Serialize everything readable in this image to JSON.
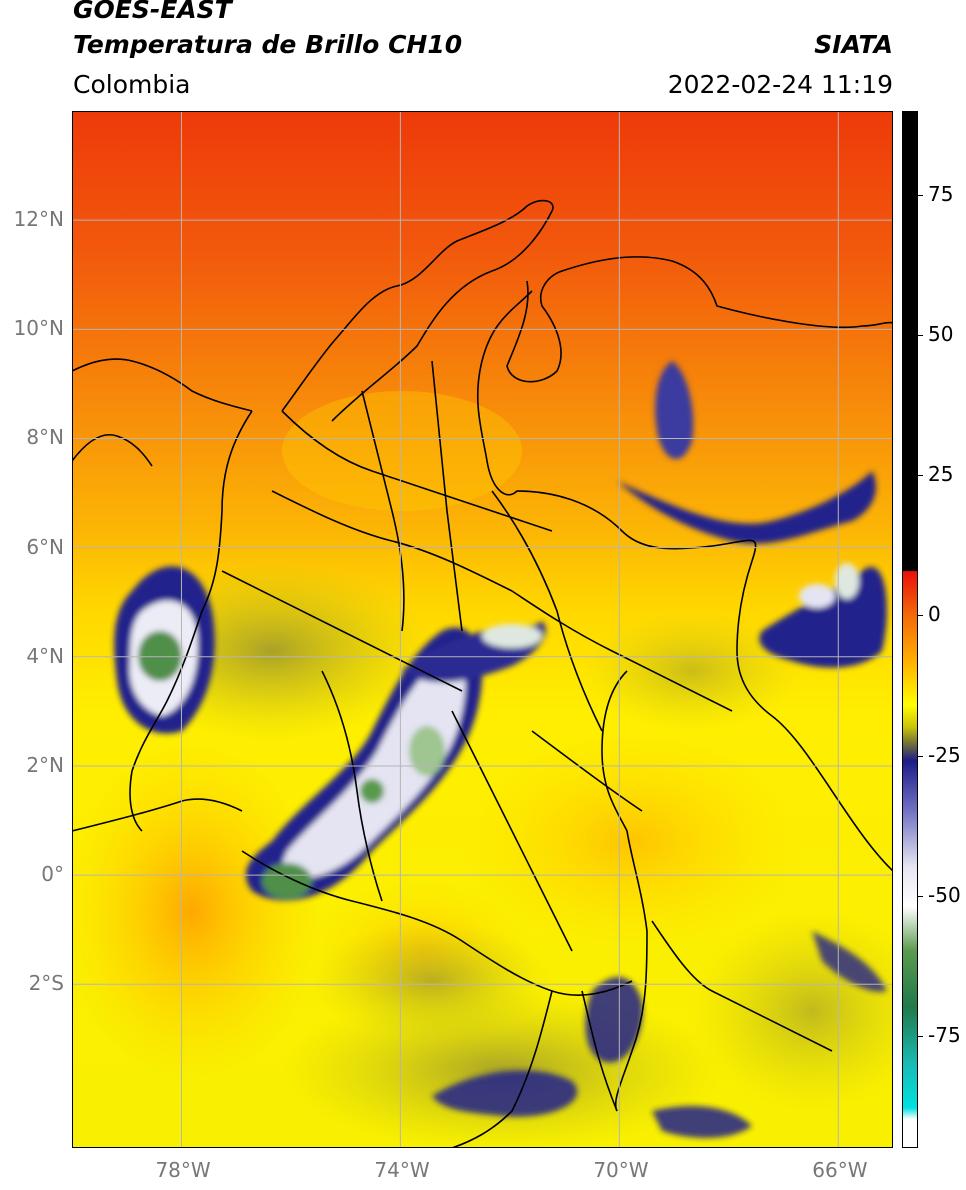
{
  "header": {
    "satellite": "GOES-EAST",
    "product": "Temperatura de Brillo CH10",
    "organization": "SIATA",
    "region": "Colombia",
    "timestamp": "2022-02-24 11:19"
  },
  "map": {
    "lon_range": [
      -80,
      -65
    ],
    "lat_range": [
      -5,
      14
    ],
    "lon_ticks": [
      {
        "value": -78,
        "label": "78°W"
      },
      {
        "value": -74,
        "label": "74°W"
      },
      {
        "value": -70,
        "label": "70°W"
      },
      {
        "value": -66,
        "label": "66°W"
      }
    ],
    "lat_ticks": [
      {
        "value": 12,
        "label": "12°N"
      },
      {
        "value": 10,
        "label": "10°N"
      },
      {
        "value": 8,
        "label": "8°N"
      },
      {
        "value": 6,
        "label": "6°N"
      },
      {
        "value": 4,
        "label": "4°N"
      },
      {
        "value": 2,
        "label": "2°N"
      },
      {
        "value": 0,
        "label": "0°"
      },
      {
        "value": -2,
        "label": "2°S"
      }
    ]
  },
  "colorbar": {
    "range": [
      -95,
      90
    ],
    "ticks": [
      {
        "value": 75,
        "label": "75"
      },
      {
        "value": 50,
        "label": "50"
      },
      {
        "value": 25,
        "label": "25"
      },
      {
        "value": 0,
        "label": "0"
      },
      {
        "value": -25,
        "label": "-25"
      },
      {
        "value": -50,
        "label": "-50"
      },
      {
        "value": -75,
        "label": "-75"
      }
    ],
    "stops": [
      {
        "value": 90,
        "color": "#000000"
      },
      {
        "value": 8,
        "color": "#000000"
      },
      {
        "value": 7.9,
        "color": "#e8100a"
      },
      {
        "value": 0,
        "color": "#f46a0a"
      },
      {
        "value": -8,
        "color": "#ffae00"
      },
      {
        "value": -16,
        "color": "#ffff00"
      },
      {
        "value": -20,
        "color": "#c8c20a"
      },
      {
        "value": -23,
        "color": "#6f6e3a"
      },
      {
        "value": -26,
        "color": "#1c1c8a"
      },
      {
        "value": -35,
        "color": "#7373c4"
      },
      {
        "value": -45,
        "color": "#e6e6f2"
      },
      {
        "value": -52,
        "color": "#ffffff"
      },
      {
        "value": -60,
        "color": "#5a9a4e"
      },
      {
        "value": -70,
        "color": "#1f7a4a"
      },
      {
        "value": -80,
        "color": "#1abab3"
      },
      {
        "value": -88,
        "color": "#00e1e1"
      },
      {
        "value": -90,
        "color": "#ffffff"
      },
      {
        "value": -95,
        "color": "#ffffff"
      }
    ]
  },
  "style": {
    "grid_color": "#b5b5b5",
    "border_color": "#000000"
  }
}
